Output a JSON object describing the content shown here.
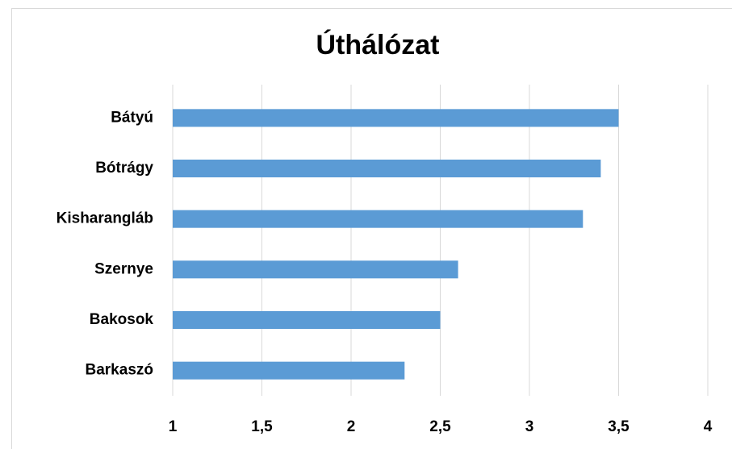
{
  "chart_data": {
    "type": "bar",
    "orientation": "horizontal",
    "title": "Úthálózat",
    "categories": [
      "Bátyú",
      "Bótrágy",
      "Kisharangláb",
      "Szernye",
      "Bakosok",
      "Barkaszó"
    ],
    "values": [
      3.5,
      3.4,
      3.3,
      2.6,
      2.5,
      2.3
    ],
    "color": "#5b9bd5",
    "xlim": [
      1,
      4
    ],
    "xticks": [
      1,
      {
        "value": 1.5,
        "label": "1,5"
      },
      2,
      {
        "value": 2.5,
        "label": "2,5"
      },
      3,
      {
        "value": 3.5,
        "label": "3,5"
      },
      4
    ],
    "grid": true
  }
}
